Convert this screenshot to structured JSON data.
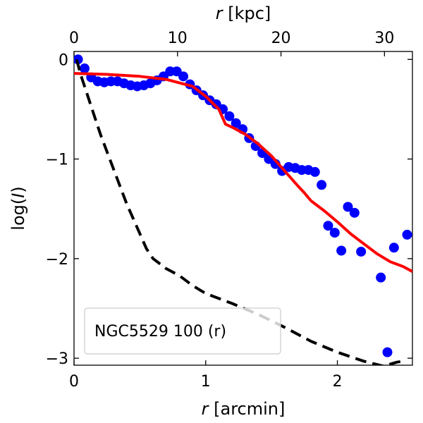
{
  "chart_data": {
    "type": "scatter",
    "title": "",
    "xlabel": "r [arcmin]",
    "ylabel": "log(I)",
    "x2label": "r [kpc]",
    "xlim": [
      0,
      2.57
    ],
    "ylim": [
      -3.07,
      0.08
    ],
    "x2lim": [
      0,
      32.7
    ],
    "xticks": [
      0,
      1,
      2
    ],
    "yticks": [
      0,
      -1,
      -2,
      -3
    ],
    "x2ticks": [
      0,
      10,
      20,
      30
    ],
    "ytick_labels": [
      "0",
      "−1",
      "−2",
      "−3"
    ],
    "grid": false,
    "legend": {
      "text": "NGC5529 100 (r)",
      "location": "lower-left"
    },
    "colors": {
      "data": "#0000ff",
      "model": "#ff0000",
      "psf": "#000000"
    },
    "series": [
      {
        "name": "data",
        "style": "markers",
        "x": [
          0.03,
          0.08,
          0.13,
          0.18,
          0.23,
          0.28,
          0.33,
          0.38,
          0.43,
          0.48,
          0.53,
          0.58,
          0.63,
          0.68,
          0.73,
          0.78,
          0.83,
          0.88,
          0.93,
          0.98,
          1.03,
          1.08,
          1.13,
          1.18,
          1.23,
          1.28,
          1.33,
          1.38,
          1.43,
          1.48,
          1.53,
          1.58,
          1.63,
          1.68,
          1.73,
          1.78,
          1.83,
          1.88,
          1.93,
          1.98,
          2.03,
          2.08,
          2.13,
          2.18,
          2.33,
          2.38,
          2.43,
          2.53
        ],
        "y": [
          0.0,
          -0.09,
          -0.18,
          -0.22,
          -0.23,
          -0.22,
          -0.22,
          -0.24,
          -0.26,
          -0.27,
          -0.26,
          -0.24,
          -0.21,
          -0.17,
          -0.12,
          -0.12,
          -0.17,
          -0.25,
          -0.31,
          -0.36,
          -0.41,
          -0.45,
          -0.5,
          -0.57,
          -0.64,
          -0.7,
          -0.79,
          -0.87,
          -0.94,
          -1.0,
          -1.05,
          -1.12,
          -1.08,
          -1.09,
          -1.11,
          -1.11,
          -1.13,
          -1.26,
          -1.67,
          -1.74,
          -1.92,
          -1.48,
          -1.54,
          -1.93,
          -2.19,
          -2.94,
          -1.89,
          -1.76
        ]
      },
      {
        "name": "model",
        "style": "solid",
        "x": [
          0.0,
          0.25,
          0.5,
          0.7,
          0.9,
          1.0,
          1.1,
          1.15,
          1.2,
          1.3,
          1.4,
          1.5,
          1.6,
          1.7,
          1.75,
          1.8,
          1.9,
          2.0,
          2.1,
          2.2,
          2.3,
          2.4,
          2.5,
          2.57
        ],
        "y": [
          -0.14,
          -0.15,
          -0.17,
          -0.2,
          -0.27,
          -0.37,
          -0.5,
          -0.65,
          -0.68,
          -0.75,
          -0.85,
          -0.97,
          -1.12,
          -1.27,
          -1.34,
          -1.42,
          -1.52,
          -1.63,
          -1.75,
          -1.85,
          -1.95,
          -2.03,
          -2.08,
          -2.13
        ]
      },
      {
        "name": "psf",
        "style": "dashed",
        "x": [
          0.02,
          0.05,
          0.1,
          0.15,
          0.2,
          0.3,
          0.4,
          0.5,
          0.55,
          0.6,
          0.7,
          0.8,
          0.9,
          1.0,
          1.2,
          1.4,
          1.6,
          1.8,
          2.0,
          2.2,
          2.35,
          2.4,
          2.45,
          2.5,
          2.52
        ],
        "y": [
          0.0,
          -0.15,
          -0.35,
          -0.55,
          -0.75,
          -1.1,
          -1.45,
          -1.75,
          -1.9,
          -2.0,
          -2.1,
          -2.17,
          -2.27,
          -2.35,
          -2.45,
          -2.56,
          -2.69,
          -2.83,
          -2.94,
          -3.03,
          -3.08,
          -3.06,
          -3.04,
          -3.03,
          -3.03
        ]
      }
    ]
  }
}
